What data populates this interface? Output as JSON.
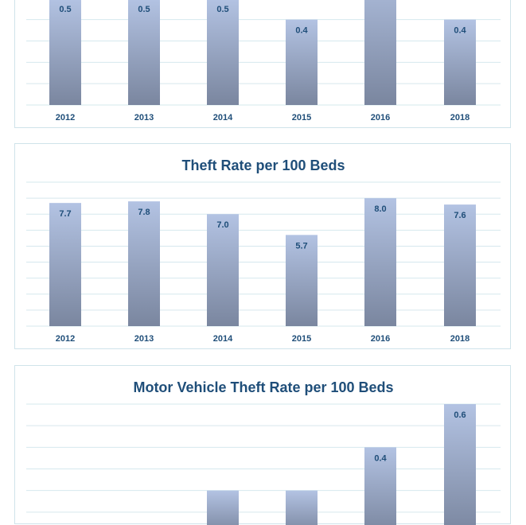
{
  "chart_data": [
    {
      "type": "bar",
      "title": "",
      "categories": [
        "2012",
        "2013",
        "2014",
        "2015",
        "2016",
        "2018"
      ],
      "values": [
        0.5,
        0.5,
        0.5,
        0.4,
        null,
        0.4
      ],
      "data_labels": [
        "0.5",
        "0.5",
        "0.5",
        "0.4",
        "",
        "0.4"
      ],
      "xlabel": "",
      "ylabel": "",
      "grid": true,
      "legend": "none"
    },
    {
      "type": "bar",
      "title": "Theft Rate per 100 Beds",
      "categories": [
        "2012",
        "2013",
        "2014",
        "2015",
        "2016",
        "2018"
      ],
      "values": [
        7.7,
        7.8,
        7.0,
        5.7,
        8.0,
        7.6
      ],
      "data_labels": [
        "7.7",
        "7.8",
        "7.0",
        "5.7",
        "8.0",
        "7.6"
      ],
      "xlabel": "",
      "ylabel": "",
      "grid": true,
      "legend": "none"
    },
    {
      "type": "bar",
      "title": "Motor Vehicle Theft Rate per 100 Beds",
      "categories": [
        "2012",
        "2013",
        "2014",
        "2015",
        "2016",
        "2018"
      ],
      "values": [
        null,
        null,
        0.2,
        0.2,
        0.4,
        0.6
      ],
      "data_labels": [
        "",
        "",
        "",
        "",
        "0.4",
        "0.6"
      ],
      "xlabel": "",
      "ylabel": "",
      "grid": true,
      "legend": "none"
    }
  ],
  "colors": {
    "bar_top": "#b3c3e3",
    "bar_bottom": "#7a869f",
    "text": "#1f4e79",
    "grid": "#d6e8ee",
    "panel_border": "#cfe3ea"
  }
}
